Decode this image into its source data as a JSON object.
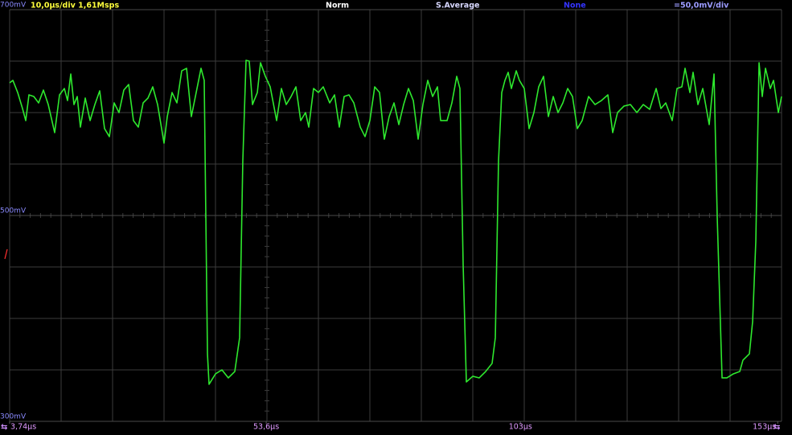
{
  "chart_data": {
    "type": "line",
    "timebase": "10,0µs/div  1,61Msps",
    "trigger_mode": "Norm",
    "acquisition": "S.Average",
    "filter": "None",
    "vertical_scale": "=50,0mV/div",
    "color": "#2ee82e",
    "xlim": [
      3.74,
      153.74
    ],
    "ylim": [
      300,
      700
    ],
    "xticks": [
      {
        "value": 3.74,
        "label": "3,74µs"
      },
      {
        "value": 53.6,
        "label": "53,6µs"
      },
      {
        "value": 103,
        "label": "103µs"
      },
      {
        "value": 153,
        "label": "153µs"
      }
    ],
    "yticks": [
      {
        "value": 700,
        "label": "700mV"
      },
      {
        "value": 500,
        "label": "500mV"
      },
      {
        "value": 300,
        "label": "300mV"
      }
    ],
    "x": [
      3.74,
      4.37,
      5.3,
      6.24,
      6.87,
      7.49,
      8.43,
      9.37,
      10.3,
      11.24,
      12.49,
      13.43,
      14.37,
      14.99,
      15.62,
      16.24,
      16.87,
      17.49,
      18.43,
      19.37,
      20.3,
      21.24,
      22.18,
      23.12,
      24.05,
      24.99,
      25.93,
      26.87,
      27.8,
      28.74,
      29.68,
      30.62,
      31.55,
      32.49,
      33.74,
      34.37,
      35.3,
      36.24,
      37.18,
      38.12,
      39.05,
      39.99,
      40.93,
      41.55,
      42.18,
      42.49,
      43.74,
      44.99,
      46.24,
      47.49,
      48.43,
      49.05,
      49.68,
      50.3,
      50.93,
      51.87,
      52.49,
      53.43,
      54.37,
      55.62,
      56.55,
      57.49,
      58.43,
      59.37,
      60.3,
      61.24,
      61.87,
      62.8,
      63.74,
      64.68,
      65.93,
      66.87,
      67.8,
      68.74,
      69.68,
      70.62,
      71.87,
      72.8,
      73.74,
      74.68,
      75.62,
      76.55,
      77.49,
      78.43,
      79.37,
      80.3,
      81.24,
      82.18,
      83.12,
      84.05,
      84.99,
      85.93,
      86.87,
      87.49,
      88.74,
      89.68,
      90.62,
      91.24,
      91.87,
      92.49,
      93.74,
      94.99,
      96.24,
      97.49,
      98.12,
      98.74,
      99.37,
      99.99,
      100.62,
      101.24,
      102.18,
      102.8,
      103.74,
      104.68,
      105.62,
      106.55,
      107.49,
      108.43,
      109.37,
      110.3,
      111.24,
      112.18,
      113.12,
      114.05,
      114.99,
      116.24,
      117.49,
      118.74,
      119.99,
      120.93,
      121.87,
      123.12,
      124.37,
      125.62,
      126.87,
      128.12,
      129.37,
      130.3,
      131.24,
      132.49,
      133.43,
      134.37,
      134.99,
      135.93,
      136.55,
      137.49,
      138.43,
      139.68,
      140.62,
      141.24,
      142.18,
      143.12,
      144.37,
      145.62,
      146.24,
      147.49,
      148.12,
      148.74,
      149.37,
      149.99,
      150.62,
      151.55,
      152.18,
      153.12,
      153.74
    ],
    "values": [
      628.9,
      631.3,
      619.5,
      603.9,
      592.2,
      617.2,
      615.6,
      609.4,
      621.9,
      607.8,
      580.5,
      617.2,
      623.4,
      611.7,
      637.5,
      607.8,
      615.6,
      585.9,
      614.1,
      592.2,
      607.8,
      621.1,
      584.4,
      576.6,
      609.4,
      600.0,
      621.9,
      627.3,
      592.2,
      585.9,
      609.4,
      614.1,
      625.0,
      607.8,
      570.3,
      596.1,
      619.5,
      609.4,
      640.6,
      643.0,
      596.1,
      619.5,
      643.0,
      631.3,
      365.6,
      336.0,
      346.1,
      350.0,
      342.2,
      348.4,
      381.3,
      553.1,
      650.8,
      650.0,
      607.8,
      619.5,
      648.4,
      635.2,
      625.0,
      592.2,
      623.4,
      607.8,
      615.6,
      625.0,
      592.2,
      600.0,
      585.9,
      623.4,
      619.5,
      625.0,
      609.4,
      617.2,
      585.9,
      615.6,
      617.2,
      609.4,
      585.9,
      576.6,
      592.2,
      625.0,
      619.5,
      574.2,
      596.1,
      609.4,
      588.3,
      607.8,
      623.4,
      611.7,
      574.2,
      607.8,
      631.3,
      615.6,
      625.0,
      592.2,
      592.2,
      609.4,
      635.2,
      623.4,
      451.6,
      338.3,
      343.8,
      342.2,
      348.4,
      356.3,
      381.3,
      553.1,
      619.5,
      631.3,
      639.1,
      623.4,
      640.6,
      631.3,
      623.4,
      584.4,
      600.0,
      625.0,
      635.2,
      596.1,
      615.6,
      600.0,
      609.4,
      623.4,
      615.6,
      584.4,
      592.2,
      615.6,
      607.8,
      611.7,
      617.2,
      580.5,
      600.0,
      606.3,
      607.8,
      600.0,
      607.8,
      603.1,
      623.4,
      603.9,
      609.4,
      592.2,
      623.4,
      625.0,
      643.0,
      619.5,
      639.1,
      607.8,
      623.4,
      588.3,
      637.5,
      498.4,
      342.2,
      342.2,
      346.1,
      348.4,
      359.4,
      365.6,
      396.9,
      475.0,
      648.4,
      615.6,
      643.0,
      623.4,
      631.3,
      600.0,
      615.6
    ]
  }
}
